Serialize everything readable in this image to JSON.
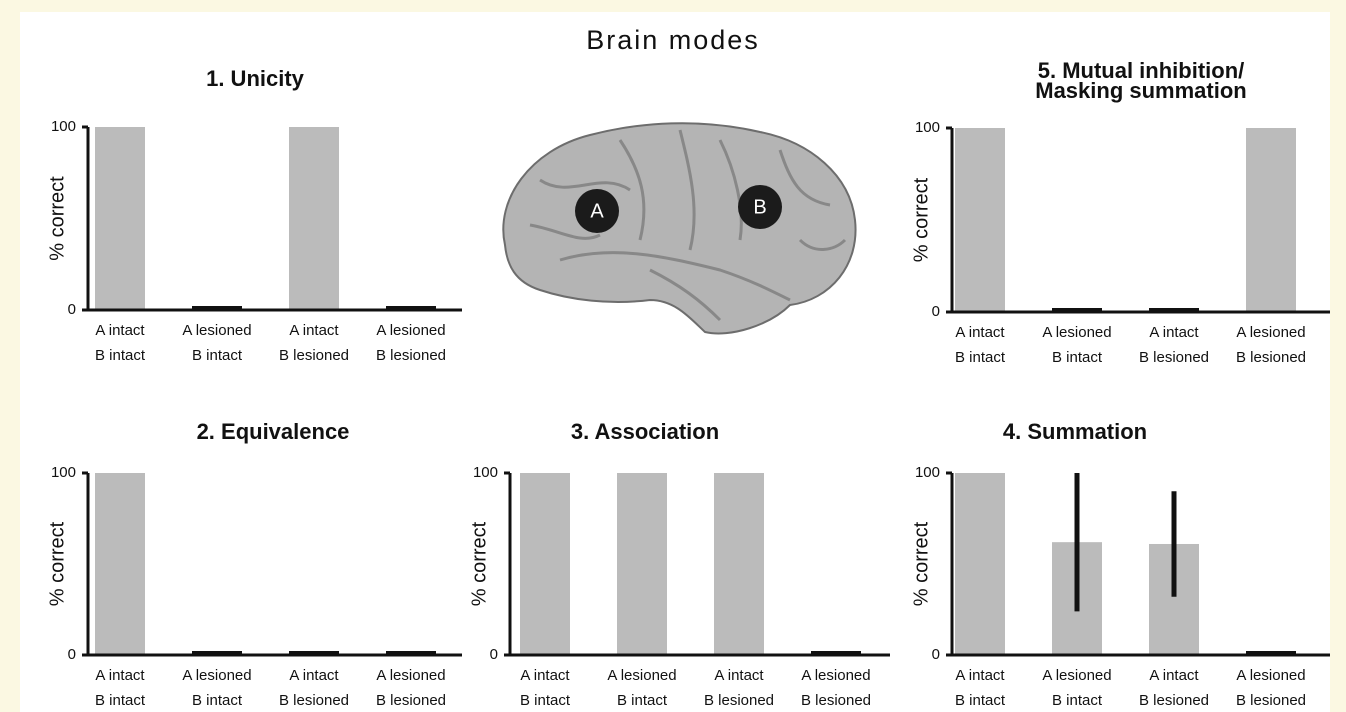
{
  "title": "Brain modes",
  "brain": {
    "labels": [
      "A",
      "B"
    ]
  },
  "chart_data": [
    {
      "type": "bar",
      "title": "1. Unicity",
      "ylabel": "% correct",
      "categories": [
        [
          "A intact",
          "B intact"
        ],
        [
          "A lesioned",
          "B intact"
        ],
        [
          "A intact",
          "B lesioned"
        ],
        [
          "A lesioned",
          "B lesioned"
        ]
      ],
      "values": [
        100,
        0,
        100,
        0
      ],
      "color": "#bbbbbb",
      "zero_color": "#111111",
      "ylim": [
        0,
        100
      ],
      "yticks": [
        0,
        100
      ]
    },
    {
      "type": "bar",
      "title": [
        "5. Mutual inhibition/",
        "Masking summation"
      ],
      "ylabel": "% correct",
      "categories": [
        [
          "A intact",
          "B intact"
        ],
        [
          "A lesioned",
          "B intact"
        ],
        [
          "A intact",
          "B lesioned"
        ],
        [
          "A lesioned",
          "B lesioned"
        ]
      ],
      "values": [
        100,
        0,
        0,
        100
      ],
      "color": "#bbbbbb",
      "zero_color": "#111111",
      "ylim": [
        0,
        100
      ],
      "yticks": [
        0,
        100
      ]
    },
    {
      "type": "bar",
      "title": "2. Equivalence",
      "ylabel": "% correct",
      "categories": [
        [
          "A intact",
          "B intact"
        ],
        [
          "A lesioned",
          "B intact"
        ],
        [
          "A intact",
          "B lesioned"
        ],
        [
          "A lesioned",
          "B lesioned"
        ]
      ],
      "values": [
        100,
        0,
        0,
        0
      ],
      "color": "#bbbbbb",
      "zero_color": "#111111",
      "ylim": [
        0,
        100
      ],
      "yticks": [
        0,
        100
      ]
    },
    {
      "type": "bar",
      "title": "3. Association",
      "ylabel": "% correct",
      "categories": [
        [
          "A intact",
          "B intact"
        ],
        [
          "A lesioned",
          "B intact"
        ],
        [
          "A intact",
          "B lesioned"
        ],
        [
          "A lesioned",
          "B lesioned"
        ]
      ],
      "values": [
        100,
        100,
        100,
        0
      ],
      "color": "#bbbbbb",
      "zero_color": "#111111",
      "ylim": [
        0,
        100
      ],
      "yticks": [
        0,
        100
      ]
    },
    {
      "type": "bar",
      "title": "4. Summation",
      "ylabel": "% correct",
      "categories": [
        [
          "A intact",
          "B intact"
        ],
        [
          "A lesioned",
          "B intact"
        ],
        [
          "A intact",
          "B lesioned"
        ],
        [
          "A lesioned",
          "B lesioned"
        ]
      ],
      "values": [
        100,
        62,
        61,
        0
      ],
      "errors": [
        null,
        38,
        29,
        null
      ],
      "color": "#bbbbbb",
      "zero_color": "#111111",
      "ylim": [
        0,
        100
      ],
      "yticks": [
        0,
        100
      ]
    }
  ]
}
